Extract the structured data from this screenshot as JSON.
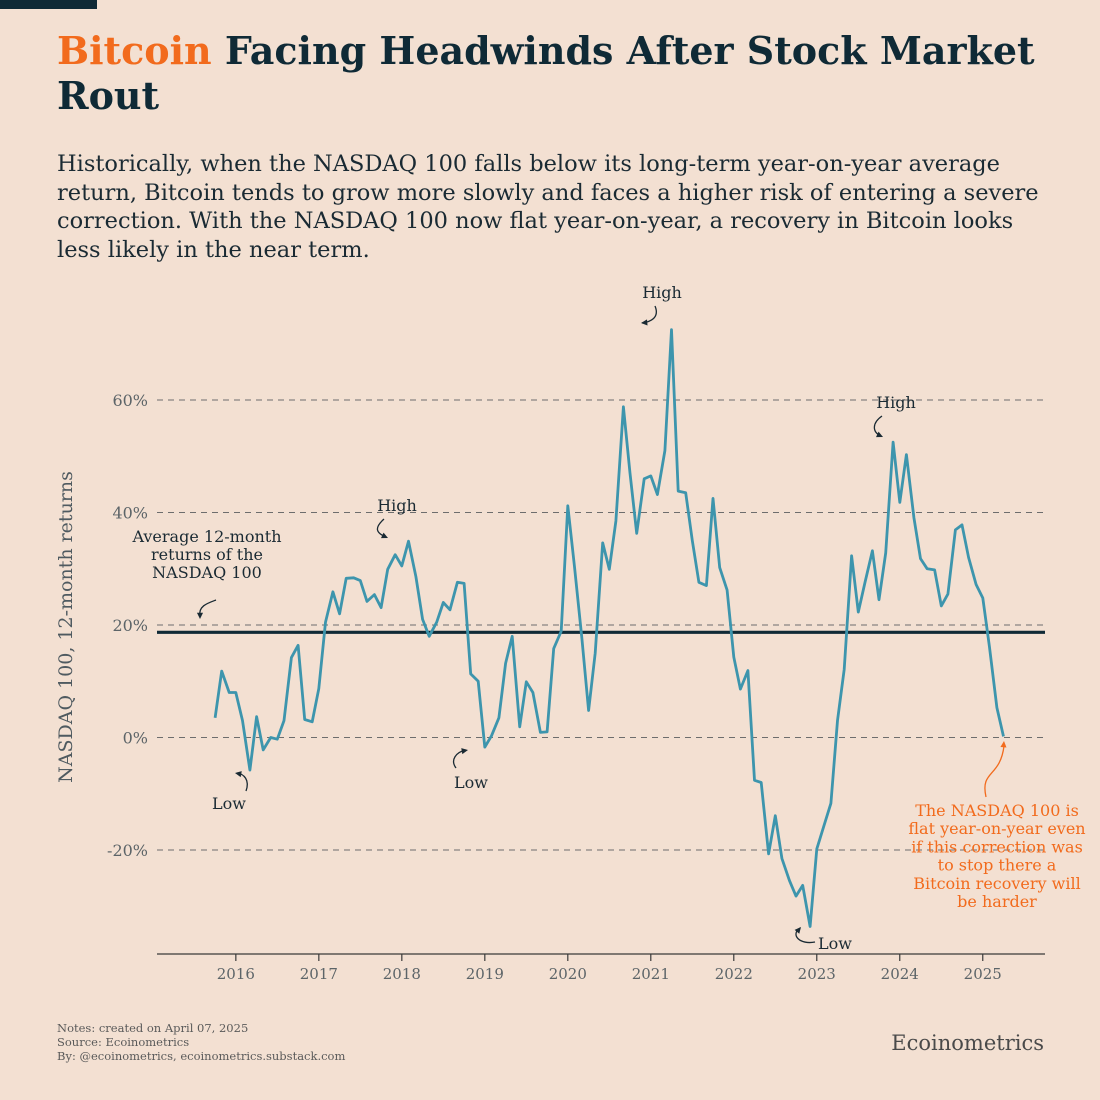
{
  "title": {
    "accent": "Bitcoin",
    "rest": " Facing Headwinds After Stock Market Rout"
  },
  "subtitle": "Historically, when the NASDAQ 100 falls below its long-term year-on-year average return, Bitcoin tends to grow more slowly and faces a higher risk of entering a severe correction. With the NASDAQ 100 now flat year-on-year, a recovery in Bitcoin looks less likely in the near term.",
  "footer": {
    "notes": "Notes: created on April 07, 2025",
    "source": "Source: Ecoinometrics",
    "by": "By: @ecoinometrics, ecoinometrics.substack.com"
  },
  "brand": "Ecoinometrics",
  "colors": {
    "line": "#3d95ad",
    "average": "#0f2a36",
    "accent": "#f26b1d",
    "background": "#f3e0d2"
  },
  "chart_data": {
    "type": "line",
    "ylabel": "NASDAQ 100, 12-month returns",
    "xlabel": "",
    "ylim": [
      -38,
      75
    ],
    "yticks": [
      -20,
      0,
      20,
      40,
      60
    ],
    "ytick_labels": [
      "-20%",
      "0%",
      "20%",
      "40%",
      "60%"
    ],
    "xlim": [
      2015.05,
      2025.75
    ],
    "xticks": [
      2016,
      2017,
      2018,
      2019,
      2020,
      2021,
      2022,
      2023,
      2024,
      2025
    ],
    "xtick_labels": [
      "2016",
      "2017",
      "2018",
      "2019",
      "2020",
      "2021",
      "2022",
      "2023",
      "2024",
      "2025"
    ],
    "grid": "horizontal dashed",
    "average": {
      "value": 18.7,
      "label": "Average 12-month returns of the NASDAQ 100"
    },
    "x": [
      2015.75,
      2015.83,
      2015.92,
      2016.0,
      2016.08,
      2016.17,
      2016.25,
      2016.33,
      2016.42,
      2016.5,
      2016.58,
      2016.67,
      2016.75,
      2016.83,
      2016.92,
      2017.0,
      2017.08,
      2017.17,
      2017.25,
      2017.33,
      2017.42,
      2017.5,
      2017.58,
      2017.67,
      2017.75,
      2017.83,
      2017.92,
      2018.0,
      2018.08,
      2018.17,
      2018.25,
      2018.33,
      2018.42,
      2018.5,
      2018.58,
      2018.67,
      2018.75,
      2018.83,
      2018.92,
      2019.0,
      2019.08,
      2019.17,
      2019.25,
      2019.33,
      2019.42,
      2019.5,
      2019.58,
      2019.67,
      2019.75,
      2019.83,
      2019.92,
      2020.0,
      2020.08,
      2020.17,
      2020.25,
      2020.33,
      2020.42,
      2020.5,
      2020.58,
      2020.67,
      2020.75,
      2020.83,
      2020.92,
      2021.0,
      2021.08,
      2021.17,
      2021.25,
      2021.33,
      2021.42,
      2021.5,
      2021.58,
      2021.67,
      2021.75,
      2021.83,
      2021.92,
      2022.0,
      2022.08,
      2022.17,
      2022.25,
      2022.33,
      2022.42,
      2022.5,
      2022.58,
      2022.67,
      2022.75,
      2022.83,
      2022.92,
      2023.0,
      2023.08,
      2023.17,
      2023.25,
      2023.33,
      2023.42,
      2023.5,
      2023.58,
      2023.67,
      2023.75,
      2023.83,
      2023.92,
      2024.0,
      2024.08,
      2024.17,
      2024.25,
      2024.33,
      2024.42,
      2024.5,
      2024.58,
      2024.67,
      2024.75,
      2024.83,
      2024.92,
      2025.0,
      2025.08,
      2025.17,
      2025.25
    ],
    "series": [
      {
        "values": [
          3.5,
          11.8,
          8.0,
          8.0,
          3.0,
          -5.8,
          3.7,
          -2.2,
          0.0,
          -0.3,
          3.0,
          14.2,
          16.4,
          3.2,
          2.8,
          8.7,
          20.5,
          25.9,
          22.0,
          28.3,
          28.4,
          27.9,
          24.2,
          25.4,
          23.1,
          29.9,
          32.5,
          30.5,
          34.9,
          28.6,
          21.0,
          18.0,
          20.5,
          24.0,
          22.7,
          27.6,
          27.4,
          11.3,
          10.0,
          -1.7,
          0.3,
          3.5,
          13.2,
          18.0,
          1.9,
          9.9,
          8.0,
          0.9,
          1.0,
          15.8,
          18.9,
          41.2,
          30.5,
          17.6,
          4.8,
          15.0,
          34.6,
          29.9,
          38.5,
          58.8,
          47.0,
          36.3,
          46.0,
          46.5,
          43.2,
          51.0,
          72.5,
          43.8,
          43.5,
          35.0,
          27.6,
          27.0,
          42.5,
          30.2,
          26.2,
          14.3,
          8.6,
          11.9,
          -7.6,
          -8.0,
          -20.7,
          -13.9,
          -21.5,
          -25.4,
          -28.2,
          -26.3,
          -33.6,
          -19.8,
          -16.0,
          -11.7,
          3.0,
          12.1,
          32.3,
          22.3,
          27.5,
          33.2,
          24.5,
          32.8,
          52.5,
          41.8,
          50.3,
          39.1,
          31.8,
          30.0,
          29.8,
          23.4,
          25.5,
          36.9,
          37.8,
          32.0,
          27.2,
          24.8,
          16.2,
          5.3,
          0.2
        ]
      }
    ],
    "annotations": [
      {
        "text": "High"
      },
      {
        "text": "High"
      },
      {
        "text": "High"
      },
      {
        "text": "Low"
      },
      {
        "text": "Low"
      },
      {
        "text": "Low"
      }
    ],
    "callout": "The NASDAQ 100 is flat year-on-year even if this correction was to stop there a Bitcoin recovery will be harder"
  }
}
